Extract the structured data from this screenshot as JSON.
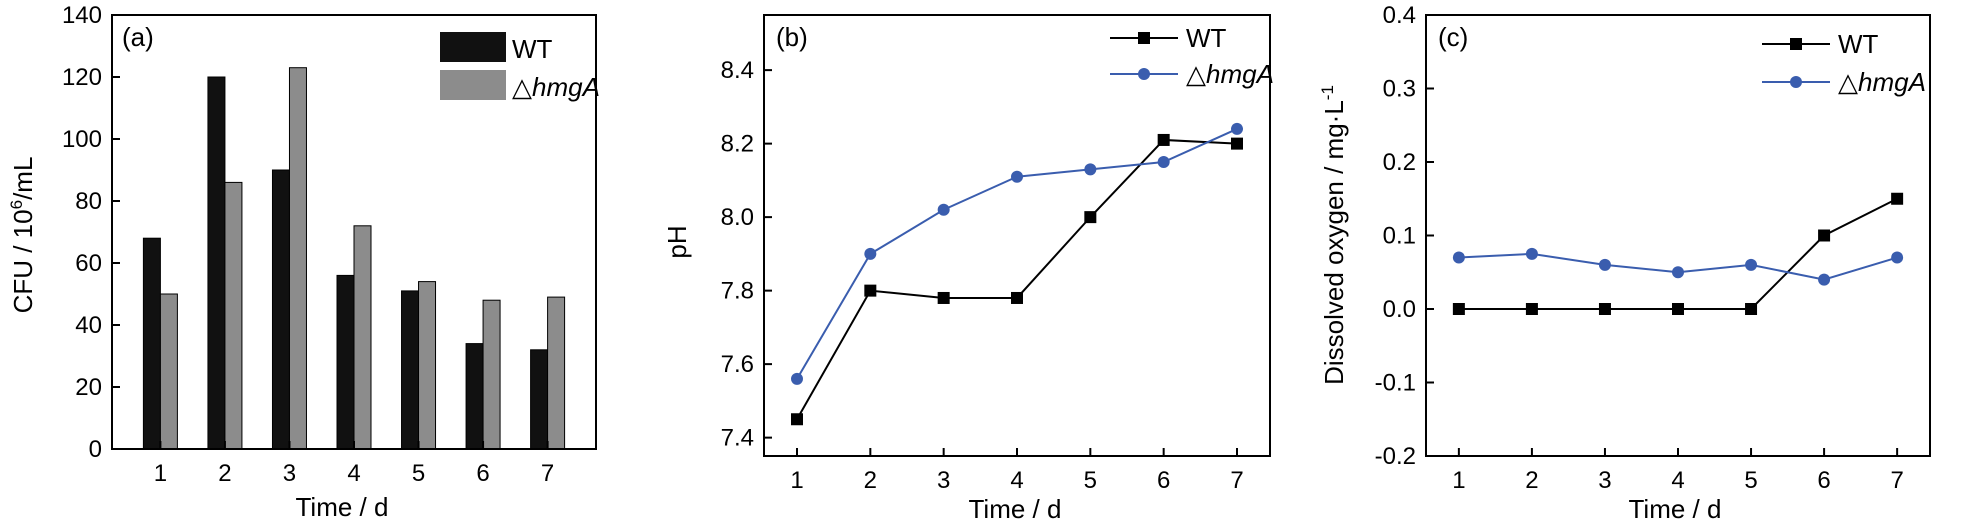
{
  "chart_data": [
    {
      "type": "bar",
      "panel_label": "(a)",
      "xlabel": "Time / d",
      "ylabel": "CFU / 10",
      "ylabel_sup": "6",
      "ylabel_suffix": "/mL",
      "categories": [
        "1",
        "2",
        "3",
        "4",
        "5",
        "6",
        "7"
      ],
      "ylim": [
        0,
        140
      ],
      "yticks": [
        "0",
        "20",
        "40",
        "60",
        "80",
        "100",
        "120",
        "140"
      ],
      "series": [
        {
          "name": "WT",
          "values": [
            68,
            120,
            90,
            56,
            51,
            34,
            32
          ],
          "color": "#111111"
        },
        {
          "name": "△hmgA",
          "values": [
            50,
            86,
            123,
            72,
            54,
            48,
            49
          ],
          "color": "#8c8c8c"
        }
      ],
      "legend": "top-right"
    },
    {
      "type": "line",
      "panel_label": "(b)",
      "xlabel": "Time / d",
      "ylabel": "pH",
      "x": [
        1,
        2,
        3,
        4,
        5,
        6,
        7
      ],
      "xticks": [
        "1",
        "2",
        "3",
        "4",
        "5",
        "6",
        "7"
      ],
      "ylim": [
        7.35,
        8.55
      ],
      "yticks": [
        "7.4",
        "7.6",
        "7.8",
        "8.0",
        "8.2",
        "8.4"
      ],
      "series": [
        {
          "name": "WT",
          "values": [
            7.45,
            7.8,
            7.78,
            7.78,
            8.0,
            8.21,
            8.2
          ],
          "color": "#000000",
          "marker": "square"
        },
        {
          "name": "△hmgA",
          "values": [
            7.56,
            7.9,
            8.02,
            8.11,
            8.13,
            8.15,
            8.24
          ],
          "color": "#3a5dae",
          "marker": "circle"
        }
      ],
      "legend": "top-right"
    },
    {
      "type": "line",
      "panel_label": "(c)",
      "xlabel": "Time / d",
      "ylabel": "Dissolved oxygen / mg·L",
      "ylabel_sup": "-1",
      "x": [
        1,
        2,
        3,
        4,
        5,
        6,
        7
      ],
      "xticks": [
        "1",
        "2",
        "3",
        "4",
        "5",
        "6",
        "7"
      ],
      "ylim": [
        -0.2,
        0.4
      ],
      "yticks": [
        "-0.2",
        "-0.1",
        "0.0",
        "0.1",
        "0.2",
        "0.3",
        "0.4"
      ],
      "series": [
        {
          "name": "WT",
          "values": [
            0.0,
            0.0,
            0.0,
            0.0,
            0.0,
            0.1,
            0.15
          ],
          "color": "#000000",
          "marker": "square"
        },
        {
          "name": "△hmgA",
          "values": [
            0.07,
            0.075,
            0.06,
            0.05,
            0.06,
            0.04,
            0.07
          ],
          "color": "#3a5dae",
          "marker": "circle"
        }
      ],
      "legend": "top-right"
    }
  ]
}
